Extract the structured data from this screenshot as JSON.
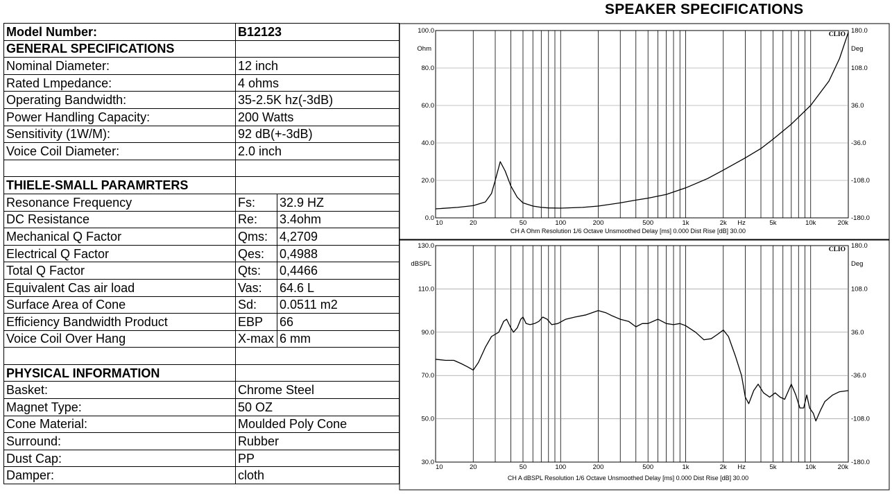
{
  "page_title": "SPEAKER SPECIFICATIONS",
  "table": {
    "model_label": "Model Number:",
    "model_value": "B12123",
    "general_header": "GENERAL SPECIFICATIONS",
    "general": [
      {
        "label": "Nominal Diameter:",
        "value": "12 inch"
      },
      {
        "label": "Rated Lmpedance:",
        "value": "4 ohms"
      },
      {
        "label": "Operating Bandwidth:",
        "value": "35-2.5K hz(-3dB)"
      },
      {
        "label": "Power Handling Capacity:",
        "value": "200 Watts"
      },
      {
        "label": "Sensitivity (1W/M):",
        "value": "92 dB(+-3dB)"
      },
      {
        "label": "Voice Coil Diameter:",
        "value": "2.0 inch"
      }
    ],
    "ts_header": "THIELE-SMALL PARAMRTERS",
    "ts": [
      {
        "label": "Resonance Frequency",
        "sym": "Fs:",
        "value": "32.9 HZ"
      },
      {
        "label": "DC Resistance",
        "sym": "Re:",
        "value": "3.4ohm"
      },
      {
        "label": "Mechanical Q Factor",
        "sym": "Qms:",
        "value": "4,2709"
      },
      {
        "label": "Electrical Q Factor",
        "sym": "Qes:",
        "value": "0,4988"
      },
      {
        "label": "Total Q Factor",
        "sym": "Qts:",
        "value": "0,4466"
      },
      {
        "label": "Equivalent Cas air load",
        "sym": "Vas:",
        "value": "64.6 L"
      },
      {
        "label": "Surface Area of Cone",
        "sym": "Sd:",
        "value": "0.0511 m2"
      },
      {
        "label": "Efficiency Bandwidth Product",
        "sym": "EBP",
        "value": "66"
      },
      {
        "label": "Voice Coil Over Hang",
        "sym": "X-max",
        "value": "6 mm"
      }
    ],
    "phys_header": "PHYSICAL INFORMATION",
    "physical": [
      {
        "label": "Basket:",
        "value": "Chrome Steel"
      },
      {
        "label": "Magnet Type:",
        "value": "50 OZ"
      },
      {
        "label": "Cone Material:",
        "value": "Moulded Poly Cone"
      },
      {
        "label": "Surround:",
        "value": "Rubber"
      },
      {
        "label": "Dust Cap:",
        "value": "PP"
      },
      {
        "label": "Damper:",
        "value": "cloth"
      }
    ]
  },
  "chart_data": [
    {
      "type": "line",
      "brand": "CLIO",
      "ylabel": "Ohm",
      "ylabel_right": "Deg",
      "xscale": "log",
      "xlim": [
        10,
        20000
      ],
      "ylim": [
        0,
        100
      ],
      "y_ticks": [
        "100.0",
        "80.0",
        "60.0",
        "40.0",
        "20.0",
        "0.0"
      ],
      "y_right_ticks": [
        "180.0",
        "108.0",
        "36.0",
        "-36.0",
        "-108.0",
        "-180.0"
      ],
      "x_ticks": [
        "10",
        "20",
        "50",
        "100",
        "200",
        "500",
        "1k",
        "2k",
        "Hz",
        "5k",
        "10k",
        "20k"
      ],
      "caption": "CH A   Ohm   Resolution 1/6 Octave   Unsmoothed   Delay [ms] 0.000   Dist Rise [dB] 30.00",
      "series": [
        {
          "values": [
            [
              10,
              4.8
            ],
            [
              15,
              5.6
            ],
            [
              20,
              6.5
            ],
            [
              25,
              8.5
            ],
            [
              28,
              13
            ],
            [
              30,
              20
            ],
            [
              32.9,
              30
            ],
            [
              36,
              25
            ],
            [
              40,
              17
            ],
            [
              45,
              11
            ],
            [
              50,
              8
            ],
            [
              60,
              6.3
            ],
            [
              70,
              5.6
            ],
            [
              80,
              5.3
            ],
            [
              100,
              5.2
            ],
            [
              150,
              5.6
            ],
            [
              200,
              6.3
            ],
            [
              300,
              8
            ],
            [
              400,
              9.5
            ],
            [
              500,
              10.5
            ],
            [
              700,
              12.5
            ],
            [
              1000,
              16
            ],
            [
              1500,
              21
            ],
            [
              2000,
              25.5
            ],
            [
              3000,
              32
            ],
            [
              4000,
              37
            ],
            [
              5000,
              42
            ],
            [
              7000,
              50
            ],
            [
              10000,
              60
            ],
            [
              14000,
              73
            ],
            [
              17000,
              85
            ],
            [
              20000,
              99
            ]
          ]
        }
      ]
    },
    {
      "type": "line",
      "brand": "CLIO",
      "ylabel": "dBSPL",
      "ylabel_right": "Deg",
      "xscale": "log",
      "xlim": [
        10,
        20000
      ],
      "ylim": [
        30,
        130
      ],
      "y_ticks": [
        "130.0",
        "110.0",
        "90.0",
        "70.0",
        "50.0",
        "30.0"
      ],
      "y_right_ticks": [
        "180.0",
        "108.0",
        "36.0",
        "-36.0",
        "-108.0",
        "-180.0"
      ],
      "x_ticks": [
        "10",
        "20",
        "50",
        "100",
        "200",
        "500",
        "1k",
        "2k",
        "Hz",
        "5k",
        "10k",
        "20k"
      ],
      "caption": "CH A   dBSPL   Resolution 1/6 Octave   Unsmoothed   Delay [ms] 0.000   Dist Rise [dB] 30.00",
      "series": [
        {
          "values": [
            [
              10,
              77.5
            ],
            [
              12,
              77
            ],
            [
              14,
              77
            ],
            [
              16,
              75.5
            ],
            [
              18,
              74
            ],
            [
              20,
              72.5
            ],
            [
              22,
              76
            ],
            [
              25,
              83
            ],
            [
              28,
              88
            ],
            [
              32,
              90
            ],
            [
              35,
              95
            ],
            [
              37,
              96
            ],
            [
              40,
              92
            ],
            [
              42,
              90
            ],
            [
              45,
              92
            ],
            [
              48,
              96
            ],
            [
              50,
              97
            ],
            [
              53,
              94
            ],
            [
              57,
              93.5
            ],
            [
              62,
              94
            ],
            [
              67,
              95
            ],
            [
              72,
              97
            ],
            [
              78,
              96
            ],
            [
              85,
              93.5
            ],
            [
              95,
              94
            ],
            [
              110,
              96
            ],
            [
              130,
              97
            ],
            [
              160,
              98
            ],
            [
              200,
              100
            ],
            [
              230,
              99
            ],
            [
              260,
              97.5
            ],
            [
              300,
              96
            ],
            [
              350,
              95
            ],
            [
              400,
              92.5
            ],
            [
              450,
              94
            ],
            [
              500,
              94
            ],
            [
              600,
              96
            ],
            [
              700,
              94
            ],
            [
              800,
              93.5
            ],
            [
              900,
              94
            ],
            [
              1000,
              93
            ],
            [
              1200,
              90
            ],
            [
              1400,
              86.5
            ],
            [
              1600,
              87
            ],
            [
              1800,
              89
            ],
            [
              2000,
              91
            ],
            [
              2200,
              88
            ],
            [
              2500,
              79
            ],
            [
              2800,
              70
            ],
            [
              3000,
              60
            ],
            [
              3200,
              57
            ],
            [
              3500,
              63
            ],
            [
              3800,
              66
            ],
            [
              4200,
              62
            ],
            [
              4700,
              60
            ],
            [
              5200,
              62
            ],
            [
              5700,
              60
            ],
            [
              6200,
              59
            ],
            [
              7000,
              66
            ],
            [
              7600,
              61
            ],
            [
              8200,
              55
            ],
            [
              8800,
              55
            ],
            [
              9300,
              61
            ],
            [
              9800,
              55
            ],
            [
              10500,
              52.5
            ],
            [
              11000,
              49
            ],
            [
              12000,
              54
            ],
            [
              13000,
              58
            ],
            [
              15000,
              61
            ],
            [
              17000,
              62.5
            ],
            [
              20000,
              63
            ]
          ]
        }
      ]
    }
  ]
}
